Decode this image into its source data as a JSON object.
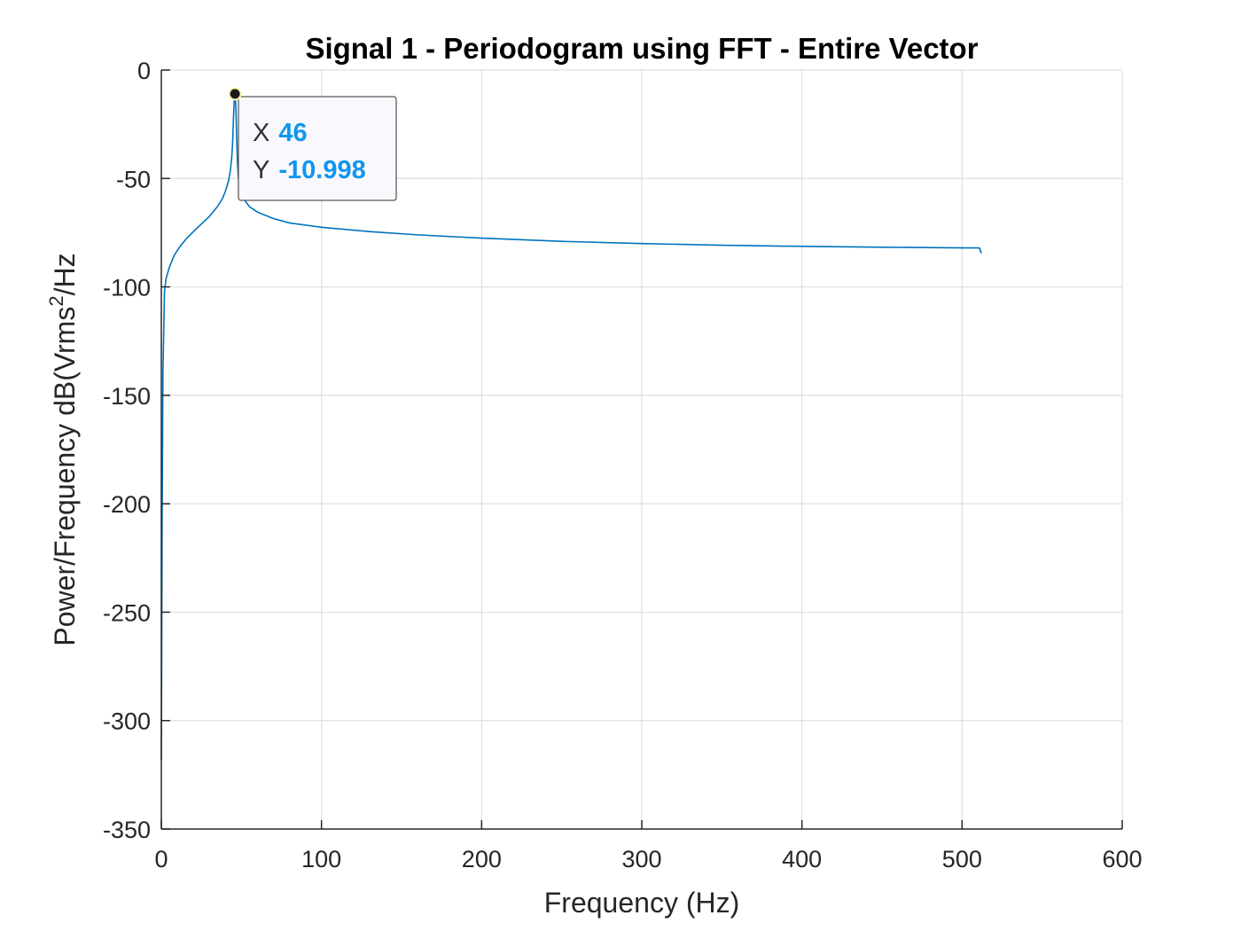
{
  "chart_data": {
    "type": "line",
    "title": "Signal 1 - Periodogram using FFT - Entire Vector",
    "xlabel": "Frequency (Hz)",
    "ylabel": {
      "pre": "Power/Frequency dB(Vrms",
      "sup": "2",
      "post": "/Hz"
    },
    "xlim": [
      0,
      600
    ],
    "ylim": [
      -350,
      0
    ],
    "xticks": [
      0,
      100,
      200,
      300,
      400,
      500,
      600
    ],
    "yticks": [
      0,
      -50,
      -100,
      -150,
      -200,
      -250,
      -300,
      -350
    ],
    "grid": true,
    "line_color": "#0072bd",
    "series": [
      {
        "x": [
          0,
          0.2,
          0.5,
          1,
          2,
          3,
          5,
          8,
          12,
          16,
          20,
          25,
          30,
          35,
          38,
          40,
          42,
          43,
          44,
          44.5,
          45,
          45.5,
          46,
          46.5,
          47,
          47.5,
          48,
          49,
          50,
          52,
          55,
          60,
          70,
          80,
          100,
          130,
          160,
          200,
          250,
          300,
          350,
          400,
          450,
          500,
          510,
          511,
          512
        ],
        "y": [
          -318,
          -280,
          -210,
          -140,
          -102,
          -96,
          -91,
          -85.5,
          -81,
          -77.5,
          -74.5,
          -71,
          -67.5,
          -63,
          -59.5,
          -56,
          -51,
          -47,
          -40,
          -34,
          -23,
          -14,
          -10.998,
          -16,
          -30,
          -42,
          -49,
          -54,
          -57,
          -60,
          -63,
          -65.5,
          -68.5,
          -70.5,
          -72.5,
          -74.5,
          -76,
          -77.5,
          -79,
          -80,
          -80.8,
          -81.3,
          -81.7,
          -82,
          -82,
          -82.2,
          -84.5
        ]
      }
    ],
    "datatip": {
      "x_key": "X",
      "x_value": "46",
      "y_key": "Y",
      "y_value": "-10.998",
      "x": 46,
      "y": -10.998
    }
  }
}
